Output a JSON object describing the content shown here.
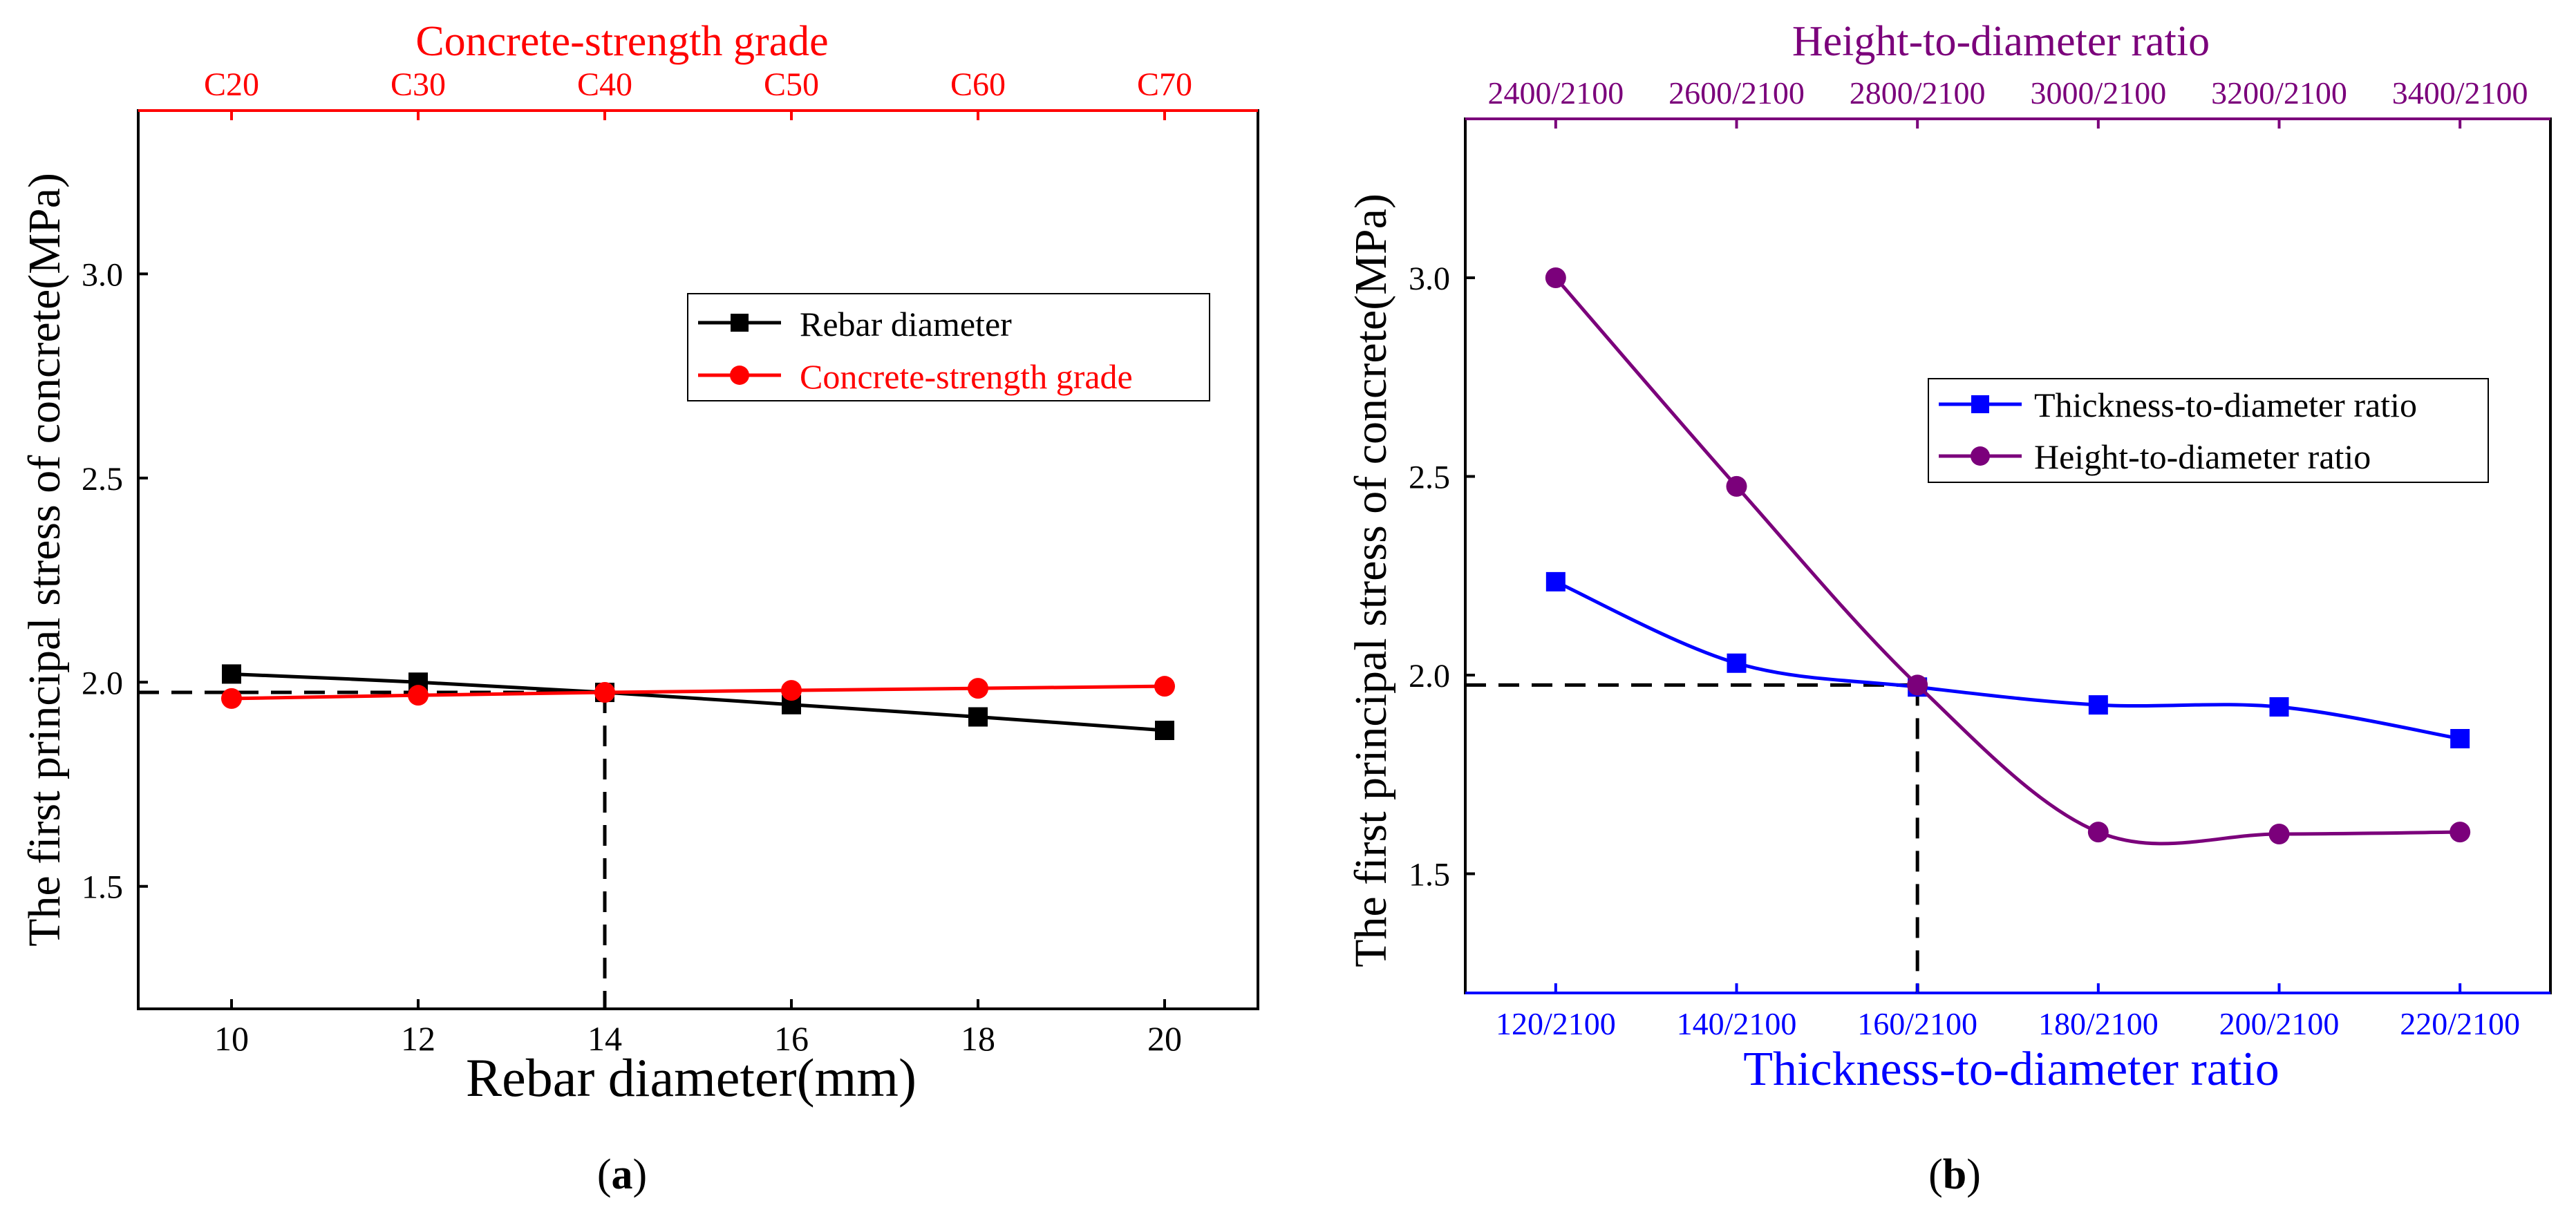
{
  "chart_data": [
    {
      "panel_label": "a",
      "type": "line",
      "left_axis_title": "The first principal stress of concrete(MPa)",
      "bottom_axis_title": "Rebar diameter(mm)",
      "top_axis_title": "Concrete-strength grade",
      "bottom_ticks": [
        "10",
        "12",
        "14",
        "16",
        "18",
        "20"
      ],
      "top_ticks": [
        "C20",
        "C30",
        "C40",
        "C50",
        "C60",
        "C70"
      ],
      "y_ticks": [
        "1.5",
        "2.0",
        "2.5",
        "3.0"
      ],
      "x_range": [
        9,
        21
      ],
      "y_range": [
        1.2,
        3.4
      ],
      "legend": [
        "Rebar diameter",
        "Concrete-strength grade"
      ],
      "series": [
        {
          "name": "Rebar diameter",
          "color": "#000000",
          "marker": "square",
          "x": [
            10,
            12,
            14,
            16,
            18,
            20
          ],
          "values": [
            2.02,
            2.0,
            1.975,
            1.945,
            1.915,
            1.882
          ]
        },
        {
          "name": "Concrete-strength grade",
          "color": "#ff0000",
          "marker": "circle",
          "x": [
            10,
            12,
            14,
            16,
            18,
            20
          ],
          "values": [
            1.96,
            1.968,
            1.975,
            1.98,
            1.985,
            1.99
          ]
        }
      ],
      "reference": {
        "x": 14,
        "y": 1.975
      }
    },
    {
      "panel_label": "b",
      "type": "line",
      "left_axis_title": "The first principal stress of concrete(MPa)",
      "bottom_axis_title": "Thickness-to-diameter ratio",
      "top_axis_title": "Height-to-diameter ratio",
      "bottom_ticks": [
        "120/2100",
        "140/2100",
        "160/2100",
        "180/2100",
        "200/2100",
        "220/2100"
      ],
      "top_ticks": [
        "2400/2100",
        "2600/2100",
        "2800/2100",
        "3000/2100",
        "3200/2100",
        "3400/2100"
      ],
      "y_ticks": [
        "1.5",
        "2.0",
        "2.5",
        "3.0"
      ],
      "x_range": [
        -0.5,
        5.5
      ],
      "y_range": [
        1.2,
        3.4
      ],
      "legend": [
        "Thickness-to-diameter ratio",
        "Height-to-diameter ratio"
      ],
      "series": [
        {
          "name": "Thickness-to-diameter ratio",
          "color": "#0000ff",
          "marker": "square",
          "x": [
            0,
            1,
            2,
            3,
            4,
            5
          ],
          "values": [
            2.235,
            2.03,
            1.97,
            1.925,
            1.92,
            1.84
          ]
        },
        {
          "name": "Height-to-diameter ratio",
          "color": "#7b007b",
          "marker": "circle",
          "x": [
            0,
            1,
            2,
            3,
            4,
            5
          ],
          "values": [
            3.0,
            2.475,
            1.975,
            1.605,
            1.6,
            1.605
          ]
        }
      ],
      "reference": {
        "x": 2,
        "y": 1.975
      }
    }
  ]
}
